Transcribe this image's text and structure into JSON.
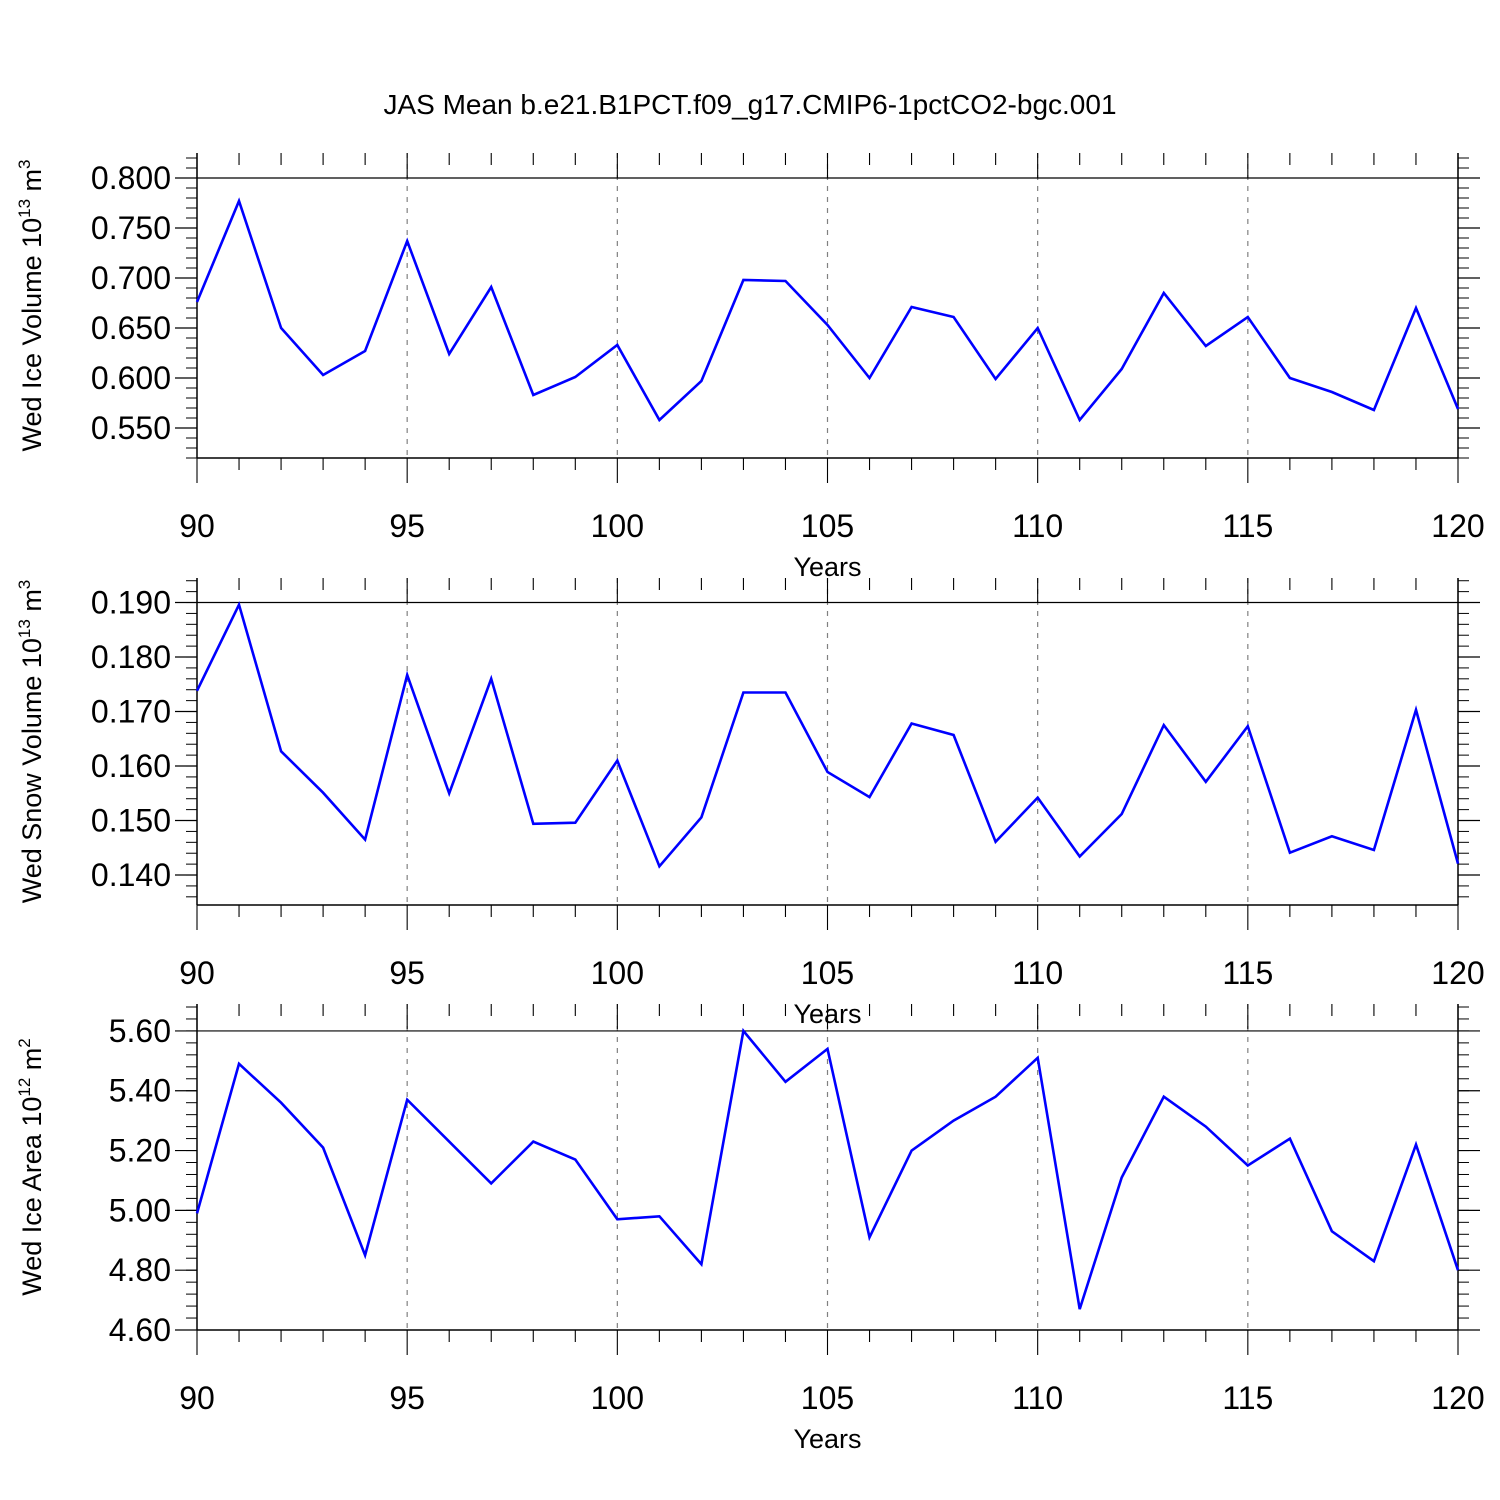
{
  "title": "JAS Mean b.e21.B1PCT.f09_g17.CMIP6-1pctCO2-bgc.001",
  "colors": {
    "line": "#0000ff",
    "axis": "#000000",
    "grid": "#808080"
  },
  "chart_data": [
    {
      "type": "line",
      "ylabel": {
        "main": "Wed Ice Volume 10",
        "exp": "13",
        "unit": " m",
        "unit_exp": "3"
      },
      "xlabel": "Years",
      "xlim": [
        90,
        120
      ],
      "ylim": [
        0.52,
        0.825
      ],
      "ref_line": 0.8,
      "yticks": [
        0.55,
        0.6,
        0.65,
        0.7,
        0.75,
        0.8
      ],
      "ytick_labels": [
        "0.550",
        "0.600",
        "0.650",
        "0.700",
        "0.750",
        "0.800"
      ],
      "xticks": [
        90,
        95,
        100,
        105,
        110,
        115,
        120
      ],
      "xtick_labels": [
        "90",
        "95",
        "100",
        "105",
        "110",
        "115",
        "120"
      ],
      "x": [
        90,
        91,
        92,
        93,
        94,
        95,
        96,
        97,
        98,
        99,
        100,
        101,
        102,
        103,
        104,
        105,
        106,
        107,
        108,
        109,
        110,
        111,
        112,
        113,
        114,
        115,
        116,
        117,
        118,
        119,
        120
      ],
      "values": [
        0.676,
        0.777,
        0.65,
        0.603,
        0.627,
        0.737,
        0.624,
        0.691,
        0.583,
        0.601,
        0.633,
        0.558,
        0.597,
        0.698,
        0.697,
        0.653,
        0.6,
        0.671,
        0.661,
        0.599,
        0.65,
        0.558,
        0.609,
        0.685,
        0.632,
        0.661,
        0.6,
        0.586,
        0.568,
        0.67,
        0.569
      ]
    },
    {
      "type": "line",
      "ylabel": {
        "main": "Wed Snow Volume 10",
        "exp": "13",
        "unit": " m",
        "unit_exp": "3"
      },
      "xlabel": "Years",
      "xlim": [
        90,
        120
      ],
      "ylim": [
        0.1345,
        0.1945
      ],
      "ref_line": 0.19,
      "yticks": [
        0.14,
        0.15,
        0.16,
        0.17,
        0.18,
        0.19
      ],
      "ytick_labels": [
        "0.140",
        "0.150",
        "0.160",
        "0.170",
        "0.180",
        "0.190"
      ],
      "xticks": [
        90,
        95,
        100,
        105,
        110,
        115,
        120
      ],
      "xtick_labels": [
        "90",
        "95",
        "100",
        "105",
        "110",
        "115",
        "120"
      ],
      "x": [
        90,
        91,
        92,
        93,
        94,
        95,
        96,
        97,
        98,
        99,
        100,
        101,
        102,
        103,
        104,
        105,
        106,
        107,
        108,
        109,
        110,
        111,
        112,
        113,
        114,
        115,
        116,
        117,
        118,
        119,
        120
      ],
      "values": [
        0.1738,
        0.1896,
        0.1627,
        0.1551,
        0.1465,
        0.1767,
        0.155,
        0.176,
        0.1494,
        0.1496,
        0.161,
        0.1416,
        0.1506,
        0.1735,
        0.1735,
        0.1589,
        0.1543,
        0.1678,
        0.1657,
        0.1461,
        0.1542,
        0.1434,
        0.1512,
        0.1675,
        0.1571,
        0.1673,
        0.1441,
        0.1471,
        0.1446,
        0.1703,
        0.1421
      ]
    },
    {
      "type": "line",
      "ylabel": {
        "main": "Wed Ice Area 10",
        "exp": "12",
        "unit": " m",
        "unit_exp": "2"
      },
      "xlabel": "Years",
      "xlim": [
        90,
        120
      ],
      "ylim": [
        4.6,
        5.69
      ],
      "ref_line": 5.6,
      "yticks": [
        4.6,
        4.8,
        5.0,
        5.2,
        5.4,
        5.6
      ],
      "ytick_labels": [
        "4.60",
        "4.80",
        "5.00",
        "5.20",
        "5.40",
        "5.60"
      ],
      "xticks": [
        90,
        95,
        100,
        105,
        110,
        115,
        120
      ],
      "xtick_labels": [
        "90",
        "95",
        "100",
        "105",
        "110",
        "115",
        "120"
      ],
      "x": [
        90,
        91,
        92,
        93,
        94,
        95,
        96,
        97,
        98,
        99,
        100,
        101,
        102,
        103,
        104,
        105,
        106,
        107,
        108,
        109,
        110,
        111,
        112,
        113,
        114,
        115,
        116,
        117,
        118,
        119,
        120
      ],
      "values": [
        4.99,
        5.49,
        5.36,
        5.21,
        4.85,
        5.37,
        5.23,
        5.09,
        5.23,
        5.17,
        4.97,
        4.98,
        4.82,
        5.6,
        5.43,
        5.54,
        4.91,
        5.2,
        5.3,
        5.38,
        5.51,
        4.67,
        5.11,
        5.38,
        5.28,
        5.15,
        5.24,
        4.93,
        4.83,
        5.22,
        4.8
      ]
    }
  ]
}
